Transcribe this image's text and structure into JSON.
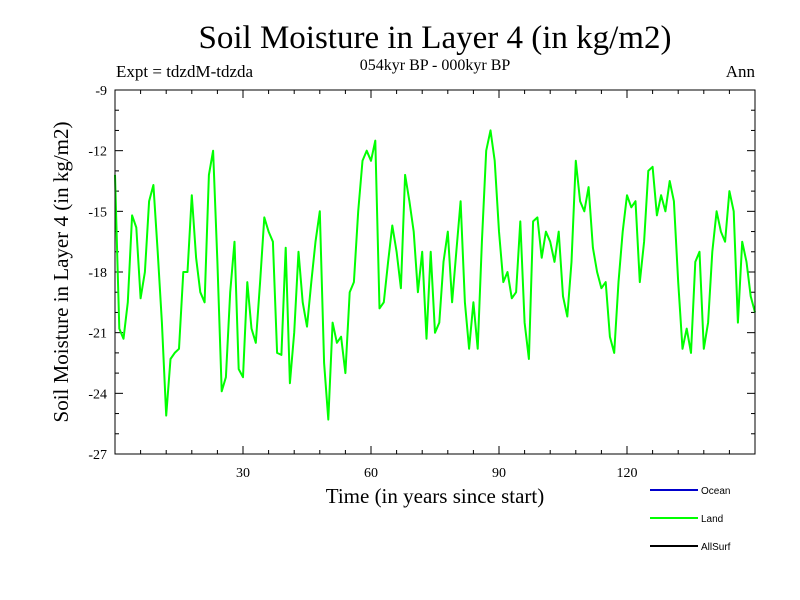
{
  "chart_data": {
    "type": "line",
    "title": "Soil Moisture in Layer 4 (in kg/m2)",
    "subtitle": "054kyr BP - 000kyr BP",
    "expt_label": "Expt = tdzdM-tdzda",
    "period_label": "Ann",
    "xlabel": "Time (in years since start)",
    "ylabel": "Soil Moisture in Layer 4 (in kg/m2)",
    "xlim": [
      0,
      150
    ],
    "ylim": [
      -27,
      -9
    ],
    "xticks": [
      30,
      60,
      90,
      120
    ],
    "yticks": [
      -9,
      -12,
      -15,
      -18,
      -21,
      -24,
      -27
    ],
    "legend": [
      {
        "name": "Ocean",
        "color": "#0000cc"
      },
      {
        "name": "Land",
        "color": "#00ff00"
      },
      {
        "name": "AllSurf",
        "color": "#000000"
      }
    ],
    "series": [
      {
        "name": "Land",
        "color": "#00ff00",
        "x": [
          0,
          1,
          2,
          3,
          4,
          5,
          6,
          7,
          8,
          9,
          10,
          11,
          12,
          13,
          14,
          15,
          16,
          17,
          18,
          19,
          20,
          21,
          22,
          23,
          24,
          25,
          26,
          27,
          28,
          29,
          30,
          31,
          32,
          33,
          34,
          35,
          36,
          37,
          38,
          39,
          40,
          41,
          42,
          43,
          44,
          45,
          46,
          47,
          48,
          49,
          50,
          51,
          52,
          53,
          54,
          55,
          56,
          57,
          58,
          59,
          60,
          61,
          62,
          63,
          64,
          65,
          66,
          67,
          68,
          69,
          70,
          71,
          72,
          73,
          74,
          75,
          76,
          77,
          78,
          79,
          80,
          81,
          82,
          83,
          84,
          85,
          86,
          87,
          88,
          89,
          90,
          91,
          92,
          93,
          94,
          95,
          96,
          97,
          98,
          99,
          100,
          101,
          102,
          103,
          104,
          105,
          106,
          107,
          108,
          109,
          110,
          111,
          112,
          113,
          114,
          115,
          116,
          117,
          118,
          119,
          120,
          121,
          122,
          123,
          124,
          125,
          126,
          127,
          128,
          129,
          130,
          131,
          132,
          133,
          134,
          135,
          136,
          137,
          138,
          139,
          140,
          141,
          142,
          143,
          144,
          145,
          146,
          147,
          148,
          149,
          150
        ],
        "values": [
          -13.2,
          -20.8,
          -21.3,
          -19.5,
          -15.2,
          -15.8,
          -19.3,
          -18.0,
          -14.5,
          -13.7,
          -17.0,
          -20.5,
          -25.1,
          -22.3,
          -22.0,
          -21.8,
          -18.0,
          -18.0,
          -14.2,
          -17.3,
          -19.0,
          -19.5,
          -13.2,
          -12.0,
          -17.5,
          -23.9,
          -23.2,
          -19.0,
          -16.5,
          -22.8,
          -23.2,
          -18.5,
          -20.8,
          -21.5,
          -18.5,
          -15.3,
          -16.0,
          -16.5,
          -22.0,
          -22.1,
          -16.8,
          -23.5,
          -21.0,
          -17.0,
          -19.5,
          -20.7,
          -18.5,
          -16.5,
          -15.0,
          -22.5,
          -25.3,
          -20.5,
          -21.5,
          -21.2,
          -23.0,
          -19.0,
          -18.5,
          -15.0,
          -12.5,
          -12.0,
          -12.5,
          -11.5,
          -19.8,
          -19.5,
          -17.5,
          -15.7,
          -17.0,
          -18.8,
          -13.2,
          -14.5,
          -16.0,
          -19.0,
          -17.0,
          -21.3,
          -17.0,
          -21.0,
          -20.5,
          -17.5,
          -16.0,
          -19.5,
          -17.0,
          -14.5,
          -19.5,
          -21.8,
          -19.5,
          -21.8,
          -16.5,
          -12.0,
          -11.0,
          -12.5,
          -16.0,
          -18.5,
          -18.0,
          -19.3,
          -19.0,
          -15.5,
          -20.5,
          -22.3,
          -15.5,
          -15.3,
          -17.3,
          -16.0,
          -16.5,
          -17.5,
          -16.0,
          -19.2,
          -20.2,
          -17.5,
          -12.5,
          -14.5,
          -15.0,
          -13.8,
          -16.8,
          -18.0,
          -18.8,
          -18.5,
          -21.2,
          -22.0,
          -18.5,
          -16.0,
          -14.2,
          -14.8,
          -14.5,
          -18.5,
          -16.5,
          -13.0,
          -12.8,
          -15.2,
          -14.2,
          -15.0,
          -13.5,
          -14.5,
          -18.5,
          -21.8,
          -20.8,
          -22.0,
          -17.5,
          -17.0,
          -21.8,
          -20.5,
          -17.0,
          -15.0,
          -16.0,
          -16.5,
          -14.0,
          -15.0,
          -20.5,
          -16.5,
          -17.5,
          -19.2,
          -20.0
        ]
      }
    ]
  }
}
